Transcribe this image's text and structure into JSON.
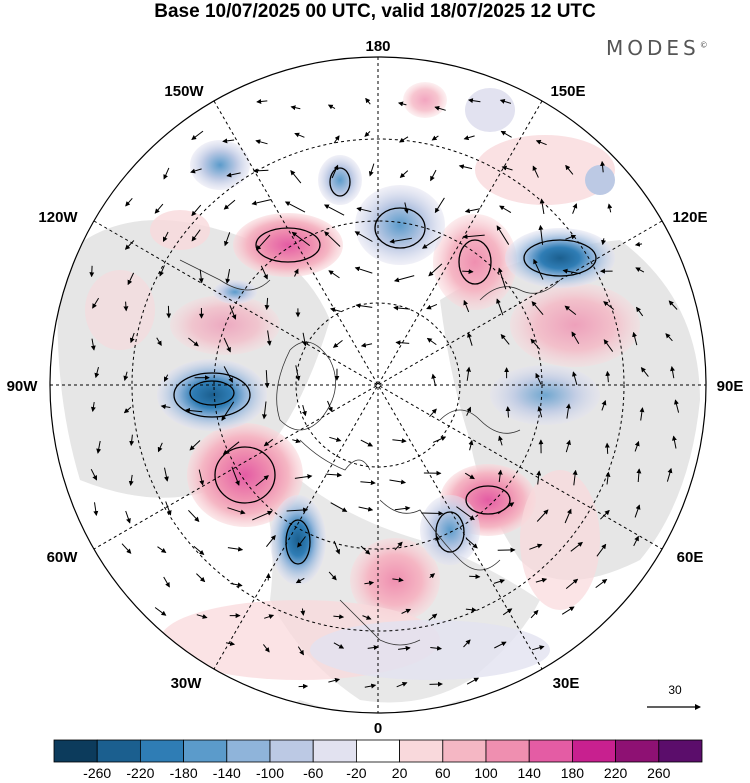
{
  "title": "Base 10/07/2025 00 UTC, valid 18/07/2025 12 UTC",
  "brand": "MODES",
  "brand_mark": "©",
  "meridian_labels": {
    "lon_180": "180",
    "lon_150w": "150W",
    "lon_150e": "150E",
    "lon_120w": "120W",
    "lon_120e": "120E",
    "lon_90w": "90W",
    "lon_90e": "90E",
    "lon_60w": "60W",
    "lon_60e": "60E",
    "lon_30w": "30W",
    "lon_30e": "30E",
    "lon_0": "0"
  },
  "reference_vector": {
    "label": "30"
  },
  "colorbar": {
    "ticks": [
      "-260",
      "-220",
      "-180",
      "-140",
      "-100",
      "-60",
      "-20",
      "20",
      "60",
      "100",
      "140",
      "180",
      "220",
      "260"
    ],
    "colors": [
      "#0c3b5c",
      "#1b5f8f",
      "#2f7db5",
      "#5b9bcb",
      "#8fb4da",
      "#bcc9e4",
      "#e2e2f0",
      "#ffffff",
      "#f9d9dc",
      "#f5b7c4",
      "#ef8fb0",
      "#e45ca4",
      "#c8208f",
      "#8e1173",
      "#5b0d6b"
    ]
  }
}
